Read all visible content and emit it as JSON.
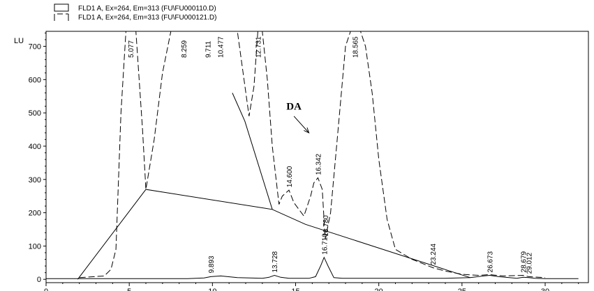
{
  "chart_data": {
    "type": "line",
    "ylabel": "LU",
    "xlim": [
      0,
      32.6
    ],
    "ylim": [
      -10,
      745
    ],
    "x_ticks": [
      0,
      5,
      10,
      15,
      20,
      25,
      30
    ],
    "y_ticks": [
      0,
      100,
      200,
      300,
      400,
      500,
      600,
      700
    ],
    "grid": false,
    "legend": [
      {
        "label": "FLD1 A, Ex=264, Em=313 (FU\\FU000110.D)",
        "style": "solid"
      },
      {
        "label": "FLD1 A, Ex=264, Em=313 (FU\\FU000121.D)",
        "style": "dashed"
      }
    ],
    "series": [
      {
        "name": "FLD1 A, Ex=264, Em=313 (FU\\FU000110.D)",
        "style": "solid",
        "x": [
          0,
          2,
          4,
          8.5,
          9.5,
          9.9,
          10.5,
          11.5,
          13,
          13.4,
          13.73,
          14.1,
          14.6,
          15.8,
          16.2,
          16.5,
          16.71,
          16.95,
          17.3,
          17.8,
          20,
          24,
          25.5,
          26.3,
          26.67,
          27.2,
          28.3,
          28.68,
          29.01,
          29.4,
          30,
          32
        ],
        "y": [
          2,
          2,
          2,
          2,
          4,
          8,
          10,
          5,
          3,
          6,
          12,
          6,
          3,
          3,
          8,
          40,
          66,
          40,
          5,
          3,
          3,
          3,
          5,
          10,
          12,
          8,
          3,
          6,
          5,
          3,
          2,
          2
        ]
      },
      {
        "name": "FLD1 A, Ex=264, Em=313 (FU\\FU000121.D)",
        "style": "dashed",
        "x": [
          2,
          3.5,
          3.9,
          4.2,
          4.5,
          4.8,
          5.077,
          5.4,
          5.8,
          6,
          6.5,
          7,
          7.5,
          7.9,
          8.259,
          8.7,
          9.2,
          9.711,
          10.1,
          10.477,
          11,
          11.5,
          11.9,
          12.2,
          12.5,
          12.731,
          13,
          13.3,
          13.6,
          14,
          14.2,
          14.6,
          14.9,
          15.5,
          15.9,
          16.1,
          16.342,
          16.6,
          16.78,
          17.1,
          17.5,
          18,
          18.3,
          18.565,
          18.9,
          19.2,
          19.6,
          20,
          20.5,
          21,
          22,
          23.244,
          24,
          25,
          26,
          26.673,
          27.5,
          28.679,
          29.012,
          30
        ],
        "y": [
          5,
          10,
          30,
          90,
          500,
          745,
          745,
          745,
          450,
          270,
          420,
          620,
          745,
          745,
          745,
          745,
          745,
          745,
          745,
          745,
          745,
          745,
          600,
          490,
          580,
          745,
          745,
          600,
          400,
          225,
          250,
          268,
          230,
          190,
          250,
          290,
          305,
          270,
          120,
          200,
          420,
          700,
          745,
          745,
          745,
          700,
          560,
          360,
          180,
          90,
          60,
          35,
          25,
          15,
          12,
          14,
          10,
          12,
          8,
          5
        ]
      }
    ],
    "peak_labels": [
      {
        "x": 5.077,
        "y": 745,
        "text": "5.077",
        "series": 2
      },
      {
        "x": 8.259,
        "y": 745,
        "text": "8.259",
        "series": 2
      },
      {
        "x": 9.711,
        "y": 745,
        "text": "9.711",
        "series": 2
      },
      {
        "x": 10.477,
        "y": 745,
        "text": "10.477",
        "series": 2
      },
      {
        "x": 12.731,
        "y": 745,
        "text": "12.731",
        "series": 2
      },
      {
        "x": 18.565,
        "y": 745,
        "text": "18.565",
        "series": 2
      },
      {
        "x": 14.6,
        "y": 268,
        "text": "14.600",
        "series": 2
      },
      {
        "x": 16.342,
        "y": 305,
        "text": "16.342",
        "series": 2
      },
      {
        "x": 16.78,
        "y": 120,
        "text": "16.780",
        "series": 2
      },
      {
        "x": 23.244,
        "y": 35,
        "text": "23.244",
        "series": 2
      },
      {
        "x": 28.679,
        "y": 12,
        "text": "28.679",
        "series": 2
      },
      {
        "x": 29.012,
        "y": 8,
        "text": "29.012",
        "series": 2
      },
      {
        "x": 9.893,
        "y": 10,
        "text": "9.893",
        "series": 1
      },
      {
        "x": 13.728,
        "y": 12,
        "text": "13.728",
        "series": 1
      },
      {
        "x": 16.71,
        "y": 66,
        "text": "16.710",
        "series": 1
      },
      {
        "x": 26.673,
        "y": 12,
        "text": "26.673",
        "series": 1
      }
    ],
    "baseline": {
      "x": [
        1.9,
        6.0,
        13.6,
        15.6,
        25.5
      ],
      "y": [
        0,
        270,
        210,
        165,
        5
      ]
    },
    "extra_line": {
      "x": [
        11.2,
        11.95,
        13.6
      ],
      "y": [
        560,
        475,
        210
      ]
    },
    "annotation": {
      "text": "DA",
      "text_x": 14.9,
      "text_y": 510,
      "arrow_from_x": 14.9,
      "arrow_from_y": 490,
      "arrow_to_x": 15.8,
      "arrow_to_y": 440
    }
  }
}
